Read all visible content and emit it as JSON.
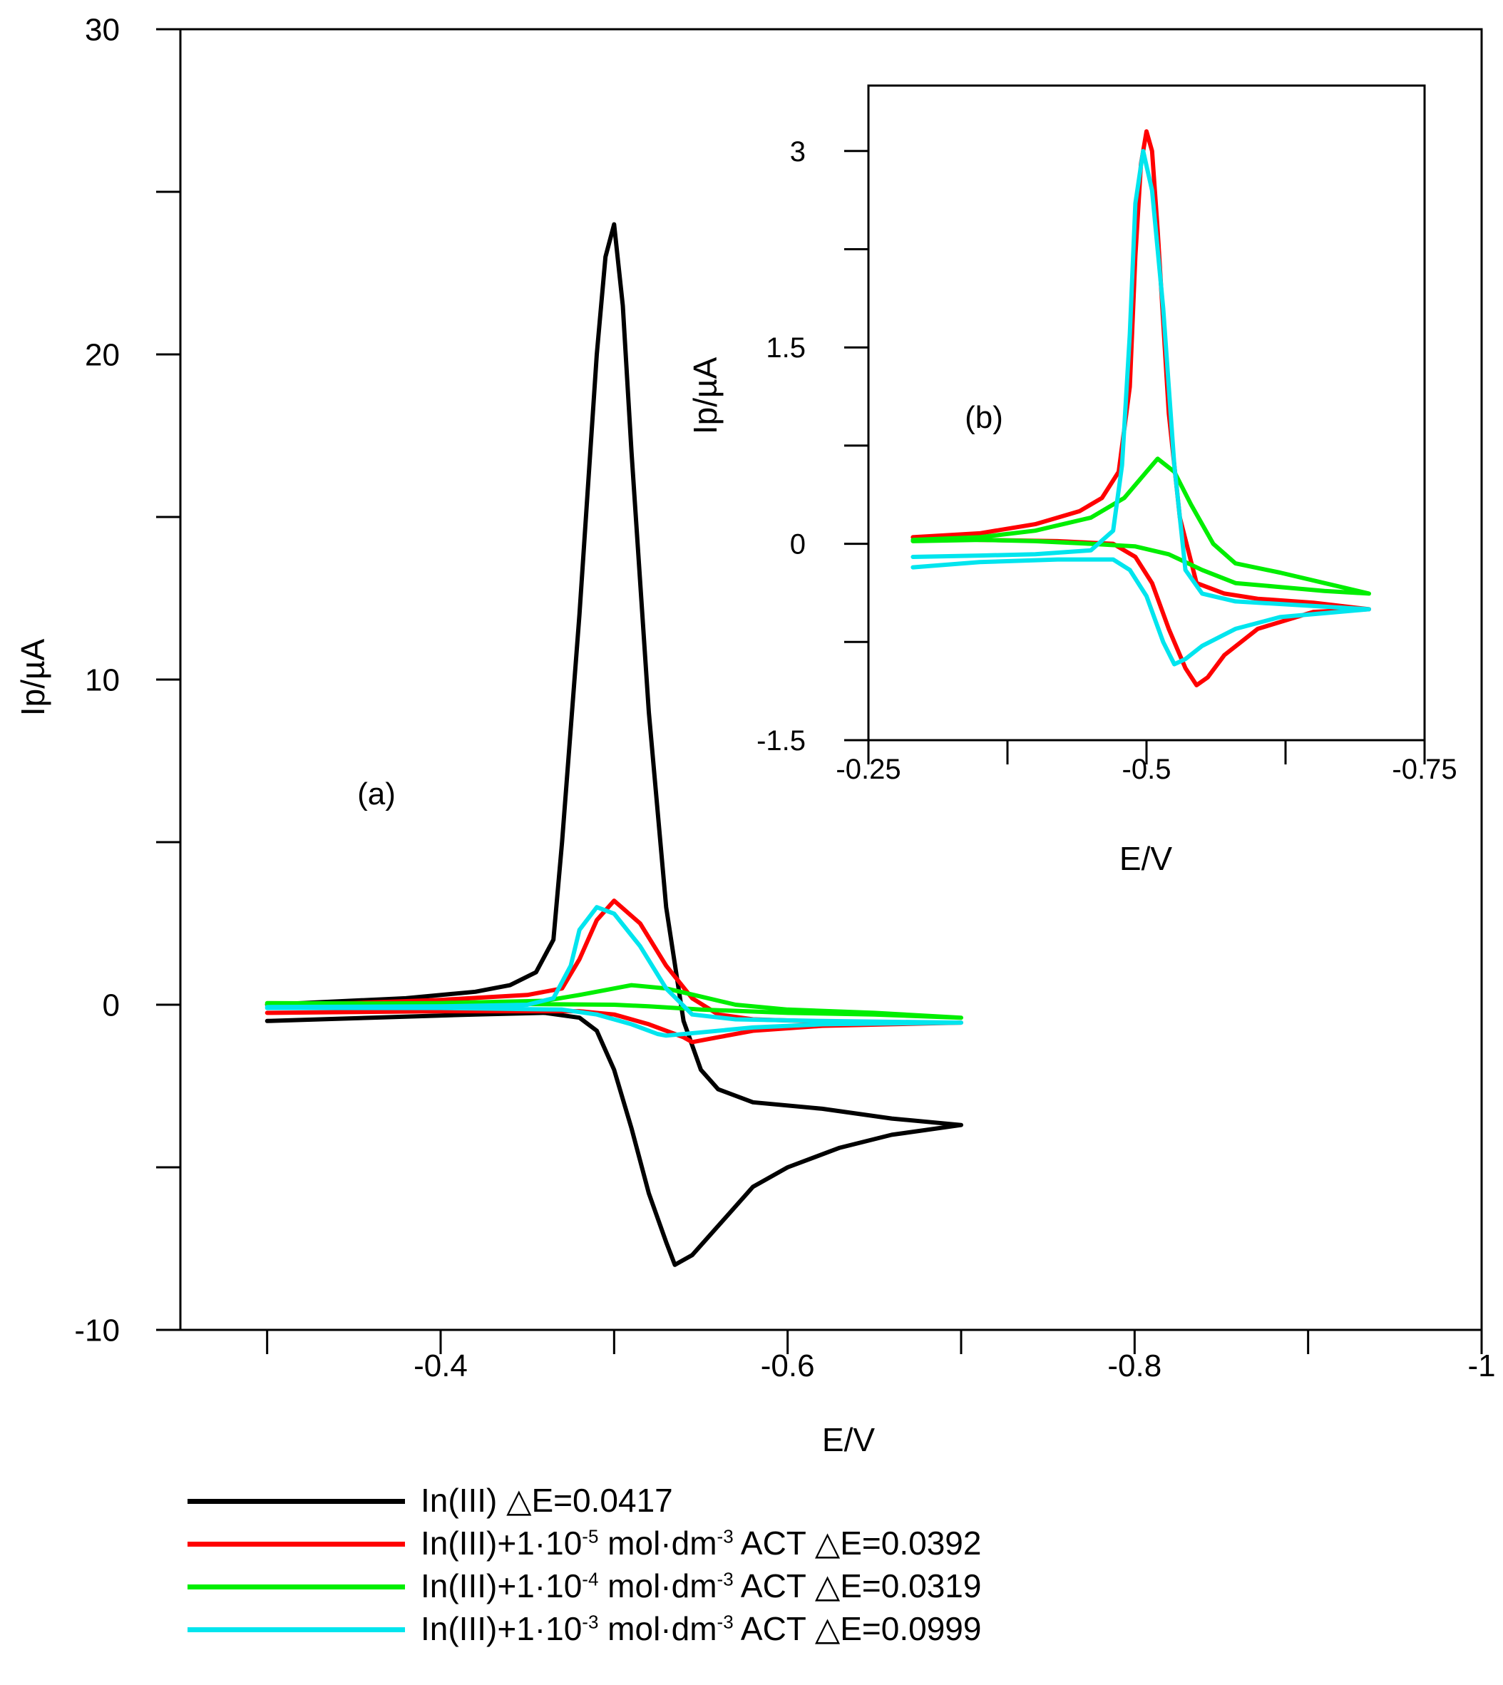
{
  "chart_data": [
    {
      "id": "main",
      "type": "line",
      "panel_label": "(a)",
      "xlabel": "E/V",
      "ylabel": "Ip/µA",
      "xlim": [
        -0.25,
        -1.0
      ],
      "ylim": [
        -10,
        30
      ],
      "xticks": [
        -0.3,
        -0.4,
        -0.5,
        -0.6,
        -0.7,
        -0.8,
        -0.9,
        -1.0
      ],
      "xtick_labels": [
        {
          "value": -0.4,
          "label": "-0.4"
        },
        {
          "value": -0.6,
          "label": "-0.6"
        },
        {
          "value": -0.8,
          "label": "-0.8"
        },
        {
          "value": -1.0,
          "label": "-1"
        }
      ],
      "yticks": [
        -10,
        -5,
        0,
        5,
        10,
        15,
        20,
        25,
        30
      ],
      "ytick_labels": [
        {
          "value": -10,
          "label": "-10"
        },
        {
          "value": 0,
          "label": "0"
        },
        {
          "value": 10,
          "label": "10"
        },
        {
          "value": 20,
          "label": "20"
        },
        {
          "value": 30,
          "label": "30"
        }
      ],
      "series": [
        {
          "name": "In(III)",
          "color": "#000000",
          "points": [
            [
              -0.3,
              -0.5
            ],
            [
              -0.36,
              -0.4
            ],
            [
              -0.42,
              -0.3
            ],
            [
              -0.46,
              -0.25
            ],
            [
              -0.48,
              -0.4
            ],
            [
              -0.49,
              -0.8
            ],
            [
              -0.5,
              -2.0
            ],
            [
              -0.51,
              -3.8
            ],
            [
              -0.52,
              -5.8
            ],
            [
              -0.53,
              -7.3
            ],
            [
              -0.535,
              -8.0
            ],
            [
              -0.545,
              -7.7
            ],
            [
              -0.56,
              -6.8
            ],
            [
              -0.58,
              -5.6
            ],
            [
              -0.6,
              -5.0
            ],
            [
              -0.63,
              -4.4
            ],
            [
              -0.66,
              -4.0
            ],
            [
              -0.7,
              -3.7
            ],
            [
              -0.66,
              -3.5
            ],
            [
              -0.62,
              -3.2
            ],
            [
              -0.58,
              -3.0
            ],
            [
              -0.56,
              -2.6
            ],
            [
              -0.55,
              -2.0
            ],
            [
              -0.54,
              -0.5
            ],
            [
              -0.53,
              3.0
            ],
            [
              -0.52,
              9.0
            ],
            [
              -0.51,
              17.0
            ],
            [
              -0.505,
              21.5
            ],
            [
              -0.5,
              24.0
            ],
            [
              -0.495,
              23.0
            ],
            [
              -0.49,
              20.0
            ],
            [
              -0.48,
              12.0
            ],
            [
              -0.47,
              5.0
            ],
            [
              -0.465,
              2.0
            ],
            [
              -0.455,
              1.0
            ],
            [
              -0.44,
              0.6
            ],
            [
              -0.42,
              0.4
            ],
            [
              -0.38,
              0.2
            ],
            [
              -0.34,
              0.1
            ],
            [
              -0.3,
              0.0
            ]
          ]
        },
        {
          "name": "In(III)+1·10-5 mol·dm-3 ACT",
          "color": "#ff0000",
          "points": [
            [
              -0.3,
              -0.25
            ],
            [
              -0.4,
              -0.2
            ],
            [
              -0.48,
              -0.2
            ],
            [
              -0.5,
              -0.3
            ],
            [
              -0.52,
              -0.6
            ],
            [
              -0.54,
              -1.0
            ],
            [
              -0.545,
              -1.15
            ],
            [
              -0.56,
              -1.0
            ],
            [
              -0.58,
              -0.8
            ],
            [
              -0.62,
              -0.65
            ],
            [
              -0.7,
              -0.55
            ],
            [
              -0.64,
              -0.55
            ],
            [
              -0.58,
              -0.45
            ],
            [
              -0.56,
              -0.3
            ],
            [
              -0.545,
              0.2
            ],
            [
              -0.53,
              1.2
            ],
            [
              -0.515,
              2.5
            ],
            [
              -0.5,
              3.2
            ],
            [
              -0.49,
              2.6
            ],
            [
              -0.48,
              1.4
            ],
            [
              -0.47,
              0.5
            ],
            [
              -0.45,
              0.3
            ],
            [
              -0.4,
              0.15
            ],
            [
              -0.35,
              0.05
            ],
            [
              -0.3,
              0.0
            ]
          ]
        },
        {
          "name": "In(III)+1·10-4 mol·dm-3 ACT",
          "color": "#00ee00",
          "points": [
            [
              -0.3,
              0.02
            ],
            [
              -0.4,
              0.05
            ],
            [
              -0.46,
              0.12
            ],
            [
              -0.48,
              0.3
            ],
            [
              -0.5,
              0.5
            ],
            [
              -0.51,
              0.6
            ],
            [
              -0.53,
              0.5
            ],
            [
              -0.55,
              0.25
            ],
            [
              -0.57,
              0.0
            ],
            [
              -0.6,
              -0.15
            ],
            [
              -0.65,
              -0.25
            ],
            [
              -0.7,
              -0.4
            ],
            [
              -0.65,
              -0.3
            ],
            [
              -0.6,
              -0.25
            ],
            [
              -0.55,
              -0.15
            ],
            [
              -0.52,
              -0.05
            ],
            [
              -0.5,
              0.0
            ],
            [
              -0.45,
              0.02
            ],
            [
              -0.4,
              0.03
            ],
            [
              -0.3,
              0.05
            ]
          ]
        },
        {
          "name": "In(III)+1·10-3 mol·dm-3 ACT",
          "color": "#00e5ee",
          "points": [
            [
              -0.3,
              -0.1
            ],
            [
              -0.4,
              -0.1
            ],
            [
              -0.47,
              -0.15
            ],
            [
              -0.49,
              -0.3
            ],
            [
              -0.51,
              -0.6
            ],
            [
              -0.525,
              -0.9
            ],
            [
              -0.53,
              -0.95
            ],
            [
              -0.55,
              -0.85
            ],
            [
              -0.58,
              -0.7
            ],
            [
              -0.62,
              -0.6
            ],
            [
              -0.7,
              -0.55
            ],
            [
              -0.62,
              -0.5
            ],
            [
              -0.57,
              -0.45
            ],
            [
              -0.545,
              -0.3
            ],
            [
              -0.53,
              0.5
            ],
            [
              -0.515,
              1.8
            ],
            [
              -0.5,
              2.8
            ],
            [
              -0.49,
              3.0
            ],
            [
              -0.48,
              2.3
            ],
            [
              -0.475,
              1.2
            ],
            [
              -0.465,
              0.2
            ],
            [
              -0.45,
              0.0
            ],
            [
              -0.4,
              -0.05
            ],
            [
              -0.3,
              -0.07
            ]
          ]
        }
      ]
    },
    {
      "id": "inset",
      "type": "line",
      "panel_label": "(b)",
      "xlabel": "E/V",
      "ylabel": "Ip/µA",
      "xlim": [
        -0.25,
        -0.75
      ],
      "ylim": [
        -1.5,
        3.5
      ],
      "xticks": [
        -0.25,
        -0.375,
        -0.5,
        -0.625,
        -0.75
      ],
      "xtick_labels": [
        {
          "value": -0.25,
          "label": "-0.25"
        },
        {
          "value": -0.5,
          "label": "-0.5"
        },
        {
          "value": -0.75,
          "label": "-0.75"
        }
      ],
      "yticks": [
        -1.5,
        -0.75,
        0,
        0.75,
        1.5,
        2.25,
        3
      ],
      "ytick_labels": [
        {
          "value": -1.5,
          "label": "-1.5"
        },
        {
          "value": 0,
          "label": "0"
        },
        {
          "value": 1.5,
          "label": "1.5"
        },
        {
          "value": 3,
          "label": "3"
        }
      ],
      "series": [
        {
          "name": "red",
          "color": "#ff0000",
          "points": [
            [
              -0.29,
              0.05
            ],
            [
              -0.35,
              0.03
            ],
            [
              -0.42,
              0.02
            ],
            [
              -0.47,
              0.0
            ],
            [
              -0.49,
              -0.1
            ],
            [
              -0.505,
              -0.3
            ],
            [
              -0.52,
              -0.65
            ],
            [
              -0.535,
              -0.95
            ],
            [
              -0.545,
              -1.08
            ],
            [
              -0.555,
              -1.02
            ],
            [
              -0.57,
              -0.85
            ],
            [
              -0.6,
              -0.65
            ],
            [
              -0.65,
              -0.52
            ],
            [
              -0.7,
              -0.5
            ],
            [
              -0.65,
              -0.45
            ],
            [
              -0.6,
              -0.42
            ],
            [
              -0.57,
              -0.38
            ],
            [
              -0.545,
              -0.3
            ],
            [
              -0.53,
              0.2
            ],
            [
              -0.52,
              1.0
            ],
            [
              -0.51,
              2.4
            ],
            [
              -0.505,
              3.0
            ],
            [
              -0.5,
              3.15
            ],
            [
              -0.495,
              2.9
            ],
            [
              -0.49,
              2.2
            ],
            [
              -0.485,
              1.2
            ],
            [
              -0.475,
              0.55
            ],
            [
              -0.46,
              0.35
            ],
            [
              -0.44,
              0.25
            ],
            [
              -0.4,
              0.15
            ],
            [
              -0.35,
              0.08
            ],
            [
              -0.29,
              0.05
            ]
          ]
        },
        {
          "name": "green",
          "color": "#00ee00",
          "points": [
            [
              -0.29,
              0.03
            ],
            [
              -0.35,
              0.05
            ],
            [
              -0.4,
              0.1
            ],
            [
              -0.45,
              0.2
            ],
            [
              -0.48,
              0.35
            ],
            [
              -0.5,
              0.55
            ],
            [
              -0.51,
              0.65
            ],
            [
              -0.525,
              0.55
            ],
            [
              -0.54,
              0.3
            ],
            [
              -0.56,
              0.0
            ],
            [
              -0.58,
              -0.15
            ],
            [
              -0.62,
              -0.22
            ],
            [
              -0.66,
              -0.3
            ],
            [
              -0.7,
              -0.38
            ],
            [
              -0.66,
              -0.36
            ],
            [
              -0.62,
              -0.33
            ],
            [
              -0.58,
              -0.3
            ],
            [
              -0.55,
              -0.2
            ],
            [
              -0.52,
              -0.08
            ],
            [
              -0.49,
              -0.02
            ],
            [
              -0.45,
              0.0
            ],
            [
              -0.4,
              0.02
            ],
            [
              -0.35,
              0.03
            ],
            [
              -0.29,
              0.02
            ]
          ]
        },
        {
          "name": "cyan",
          "color": "#00e5ee",
          "points": [
            [
              -0.29,
              -0.18
            ],
            [
              -0.35,
              -0.14
            ],
            [
              -0.42,
              -0.12
            ],
            [
              -0.47,
              -0.12
            ],
            [
              -0.485,
              -0.2
            ],
            [
              -0.5,
              -0.4
            ],
            [
              -0.515,
              -0.75
            ],
            [
              -0.525,
              -0.92
            ],
            [
              -0.535,
              -0.88
            ],
            [
              -0.55,
              -0.78
            ],
            [
              -0.58,
              -0.65
            ],
            [
              -0.62,
              -0.56
            ],
            [
              -0.7,
              -0.5
            ],
            [
              -0.64,
              -0.47
            ],
            [
              -0.58,
              -0.44
            ],
            [
              -0.55,
              -0.38
            ],
            [
              -0.535,
              -0.2
            ],
            [
              -0.525,
              0.6
            ],
            [
              -0.515,
              1.8
            ],
            [
              -0.505,
              2.7
            ],
            [
              -0.497,
              3.0
            ],
            [
              -0.49,
              2.6
            ],
            [
              -0.485,
              1.6
            ],
            [
              -0.478,
              0.6
            ],
            [
              -0.47,
              0.1
            ],
            [
              -0.45,
              -0.05
            ],
            [
              -0.4,
              -0.08
            ],
            [
              -0.35,
              -0.09
            ],
            [
              -0.29,
              -0.1
            ]
          ]
        }
      ]
    }
  ],
  "legend": [
    {
      "color": "#000000",
      "base": "In(III) ",
      "delta": "△E=0.0417"
    },
    {
      "color": "#ff0000",
      "base": "In(III)+1·10",
      "sup1": "-5",
      "mid": " mol·dm",
      "sup2": "-3",
      "tail": " ACT ",
      "delta": "△E=0.0392"
    },
    {
      "color": "#00ee00",
      "base": "In(III)+1·10",
      "sup1": "-4",
      "mid": " mol·dm",
      "sup2": "-3",
      "tail": " ACT ",
      "delta": "△E=0.0319"
    },
    {
      "color": "#00e5ee",
      "base": "In(III)+1·10",
      "sup1": "-3",
      "mid": " mol·dm",
      "sup2": "-3",
      "tail": " ACT ",
      "delta": "△E=0.0999"
    }
  ]
}
